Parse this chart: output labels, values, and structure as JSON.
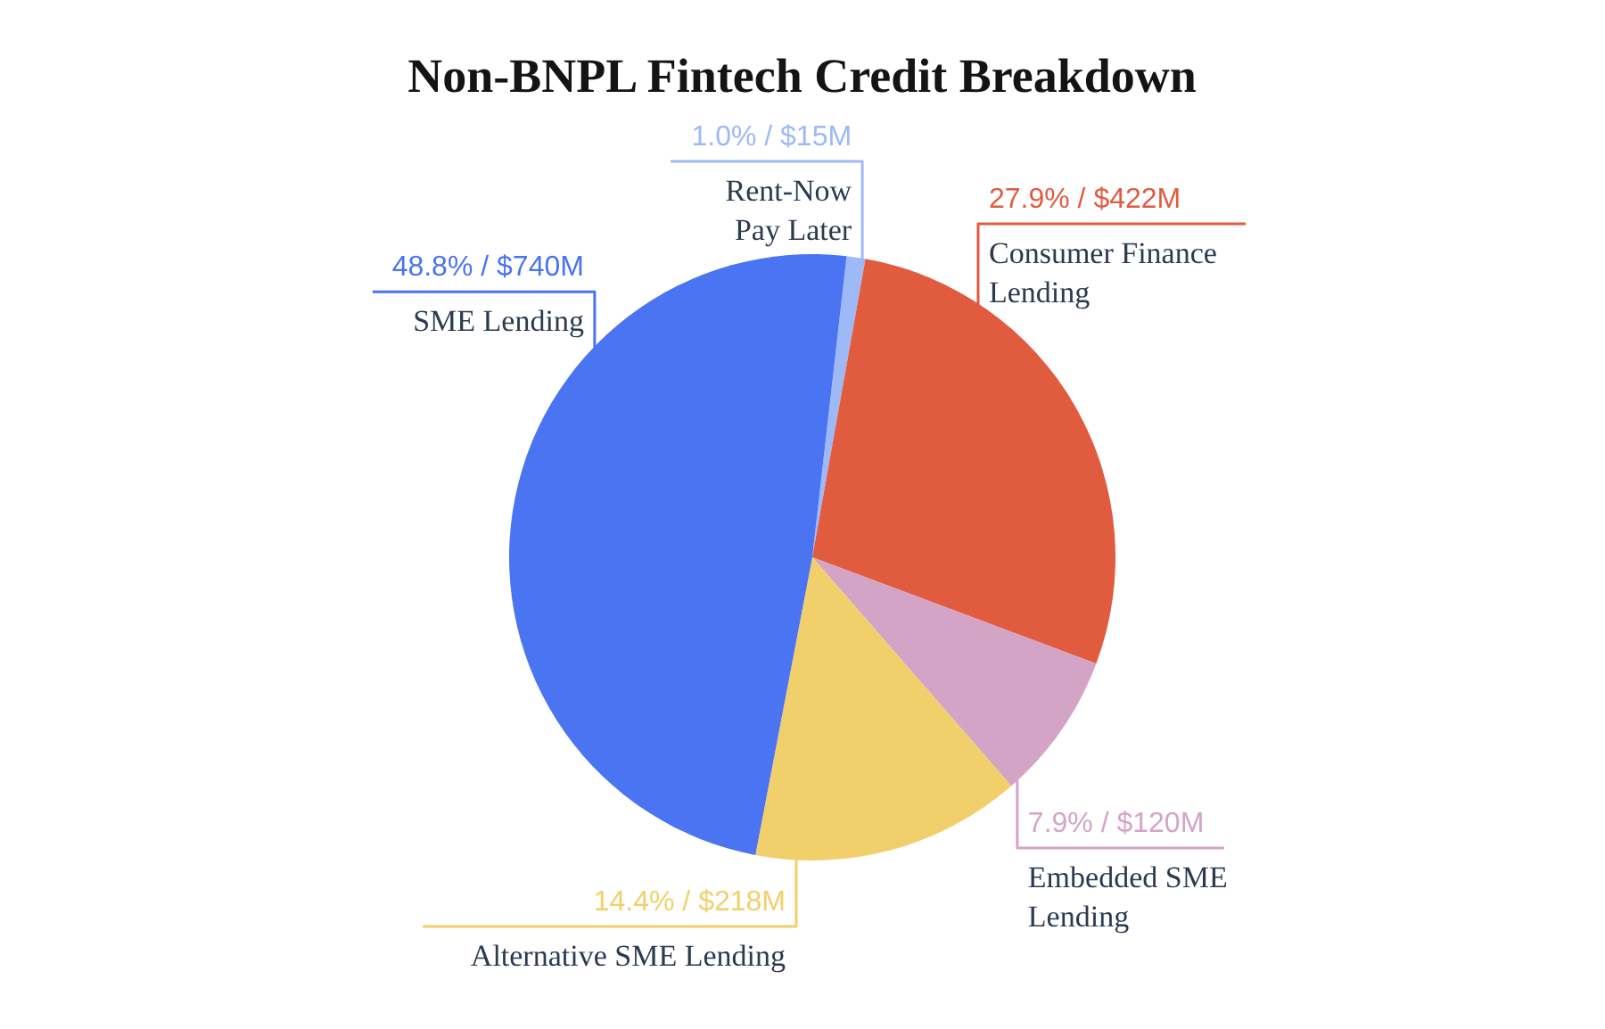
{
  "chart_data": {
    "type": "pie",
    "title": "Non-BNPL Fintech Credit Breakdown",
    "categories": [
      "Rent-Now Pay Later",
      "Consumer Finance Lending",
      "Embedded SME Lending",
      "Alternative SME Lending",
      "SME Lending"
    ],
    "values": [
      1.0,
      27.9,
      7.9,
      14.4,
      48.8
    ],
    "colors": [
      "#9db9f8",
      "#e15b3f",
      "#d4a4c6",
      "#f1d06c",
      "#4a74f2"
    ],
    "value_labels": [
      "1.0% / $15M",
      "27.9% / $422M",
      "7.9% / $120M",
      "14.4% / $218M",
      "48.8% / $740M"
    ]
  }
}
